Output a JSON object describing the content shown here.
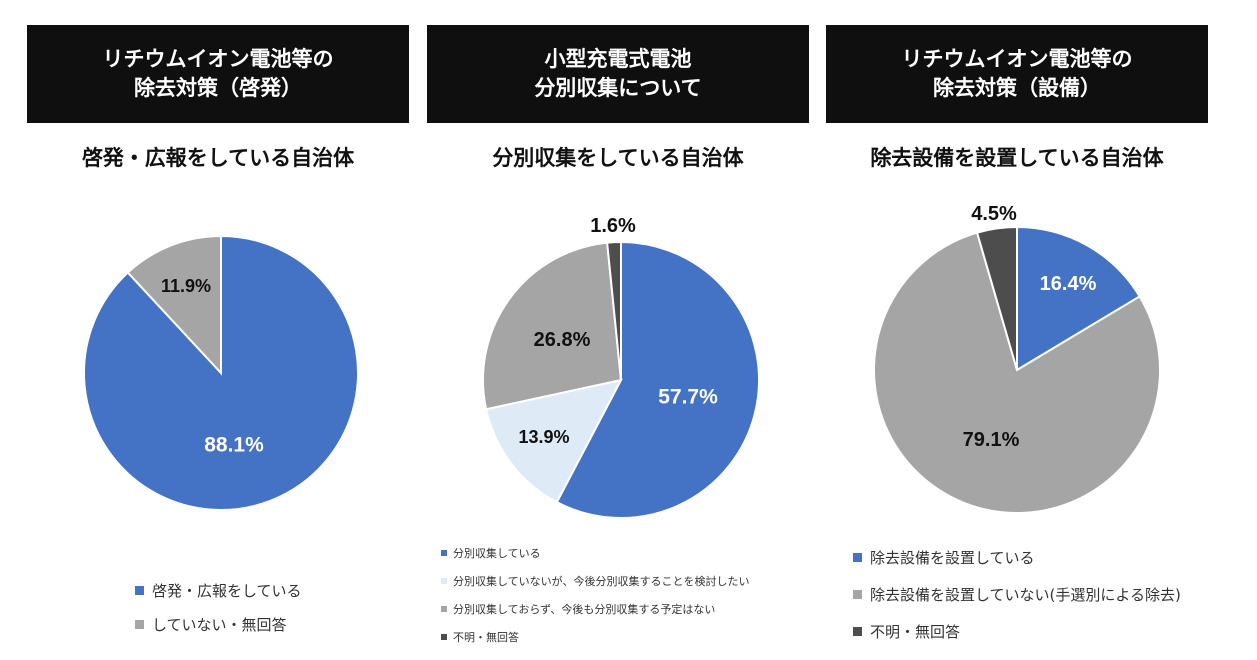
{
  "colors": {
    "blue": "#4472c4",
    "light_blue": "#deebf7",
    "gray": "#a5a5a5",
    "dark_gray": "#4d4d4d",
    "header_bg": "#0f0f0f"
  },
  "panels": [
    {
      "header_line1": "リチウムイオン電池等の",
      "header_line2": "除去対策（啓発）",
      "subtitle": "啓発・広報をしている自治体",
      "legend": [
        "啓発・広報をしている",
        "していない・無回答"
      ]
    },
    {
      "header_line1": "小型充電式電池",
      "header_line2": "分別収集について",
      "subtitle": "分別収集をしている自治体",
      "legend": [
        "分別収集している",
        "分別収集していないが、今後分別収集することを検討したい",
        "分別収集しておらず、今後も分別収集する予定はない",
        "不明・無回答"
      ]
    },
    {
      "header_line1": "リチウムイオン電池等の",
      "header_line2": "除去対策（設備）",
      "subtitle": "除去設備を設置している自治体",
      "legend": [
        "除去設備を設置している",
        "除去設備を設置していない(手選別による除去)",
        "不明・無回答"
      ]
    }
  ],
  "chart_data": [
    {
      "type": "pie",
      "title": "啓発・広報をしている自治体",
      "categories": [
        "啓発・広報をしている",
        "していない・無回答"
      ],
      "values": [
        88.1,
        11.9
      ],
      "labels": [
        "88.1%",
        "11.9%"
      ],
      "colors": [
        "#4472c4",
        "#a5a5a5"
      ],
      "legend_position": "bottom"
    },
    {
      "type": "pie",
      "title": "分別収集をしている自治体",
      "categories": [
        "分別収集している",
        "分別収集していないが、今後分別収集することを検討したい",
        "分別収集しておらず、今後も分別収集する予定はない",
        "不明・無回答"
      ],
      "values": [
        57.7,
        13.9,
        26.8,
        1.6
      ],
      "labels": [
        "57.7%",
        "13.9%",
        "26.8%",
        "1.6%"
      ],
      "colors": [
        "#4472c4",
        "#deebf7",
        "#a5a5a5",
        "#4d4d4d"
      ],
      "legend_position": "bottom"
    },
    {
      "type": "pie",
      "title": "除去設備を設置している自治体",
      "categories": [
        "除去設備を設置している",
        "除去設備を設置していない(手選別による除去)",
        "不明・無回答"
      ],
      "values": [
        16.4,
        79.1,
        4.5
      ],
      "labels": [
        "16.4%",
        "79.1%",
        "4.5%"
      ],
      "colors": [
        "#4472c4",
        "#a5a5a5",
        "#4d4d4d"
      ],
      "legend_position": "bottom"
    }
  ]
}
